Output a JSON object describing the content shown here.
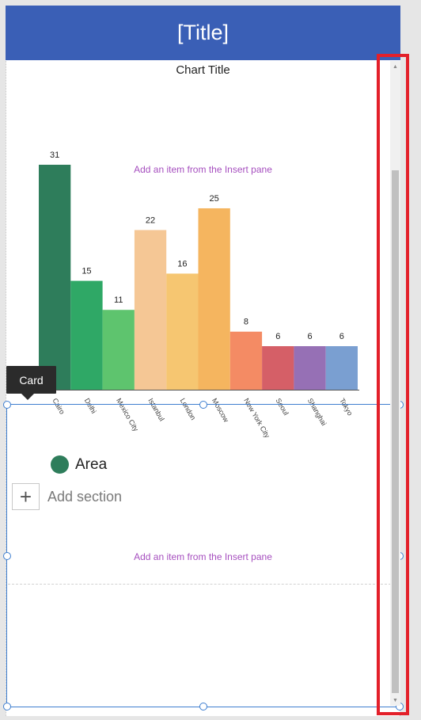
{
  "header": {
    "title": "[Title]"
  },
  "chart_placeholder": {
    "hint": "Add an item from the Insert pane"
  },
  "chart_data": {
    "type": "bar",
    "title": "Chart Title",
    "categories": [
      "Cairo",
      "Delhi",
      "Mexico City",
      "Istanbul",
      "London",
      "Moscow",
      "New York City",
      "Seoul",
      "Shanghai",
      "Tokyo"
    ],
    "values": [
      31,
      15,
      11,
      22,
      16,
      25,
      8,
      6,
      6,
      6
    ],
    "colors": [
      "#2e7d5b",
      "#2fa866",
      "#5ec46e",
      "#f5c795",
      "#f6c671",
      "#f5b55f",
      "#f48b64",
      "#d55f67",
      "#9670b5",
      "#7a9fd1"
    ],
    "ylim": [
      0,
      31
    ],
    "data_labels": true,
    "grid": false,
    "legend": {
      "label": "Area",
      "color": "#2e7d5b"
    }
  },
  "card": {
    "tooltip": "Card"
  },
  "form": {
    "add_section_icon": "+",
    "add_section_label": "Add section",
    "hint": "Add an item from the Insert pane"
  },
  "scrollbar": {
    "up_icon": "▲",
    "down_icon": "▼"
  },
  "colors": {
    "header_bg": "#3a5fb6",
    "hint_text": "#a64fbf",
    "selection": "#3f7fd0",
    "highlight": "#e3202a"
  }
}
